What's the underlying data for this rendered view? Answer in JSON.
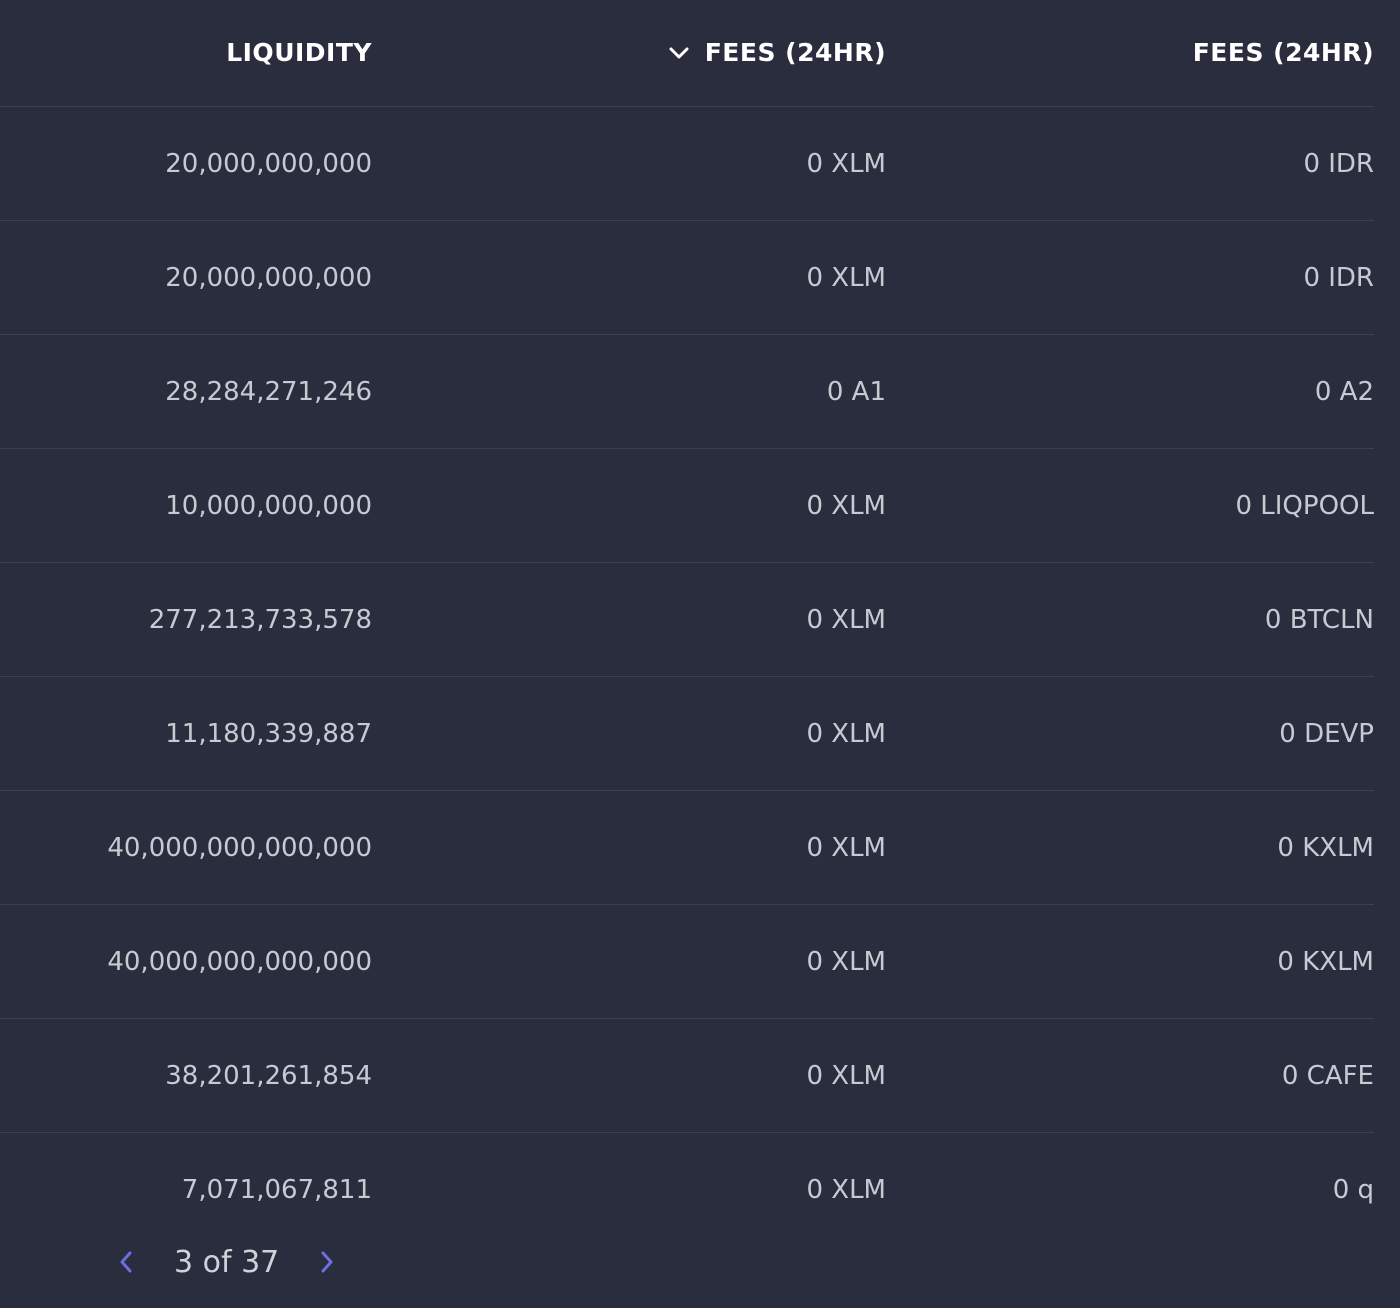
{
  "header": {
    "liquidity": "LIQUIDITY",
    "fees_a": "FEES (24HR)",
    "fees_b": "FEES (24HR)"
  },
  "rows": [
    {
      "liquidity": "20,000,000,000",
      "fee_a": "0 XLM",
      "fee_b": "0 IDR"
    },
    {
      "liquidity": "20,000,000,000",
      "fee_a": "0 XLM",
      "fee_b": "0 IDR"
    },
    {
      "liquidity": "28,284,271,246",
      "fee_a": "0 A1",
      "fee_b": "0 A2"
    },
    {
      "liquidity": "10,000,000,000",
      "fee_a": "0 XLM",
      "fee_b": "0 LIQPOOL"
    },
    {
      "liquidity": "277,213,733,578",
      "fee_a": "0 XLM",
      "fee_b": "0 BTCLN"
    },
    {
      "liquidity": "11,180,339,887",
      "fee_a": "0 XLM",
      "fee_b": "0 DEVP"
    },
    {
      "liquidity": "40,000,000,000,000",
      "fee_a": "0 XLM",
      "fee_b": "0 KXLM"
    },
    {
      "liquidity": "40,000,000,000,000",
      "fee_a": "0 XLM",
      "fee_b": "0 KXLM"
    },
    {
      "liquidity": "38,201,261,854",
      "fee_a": "0 XLM",
      "fee_b": "0 CAFE"
    },
    {
      "liquidity": "7,071,067,811",
      "fee_a": "0 XLM",
      "fee_b": "0 q"
    }
  ],
  "pagination": {
    "label": "3 of 37"
  },
  "colors": {
    "background": "#2a2d3e",
    "divider": "#3d4052",
    "accent": "#6b6fe0",
    "header_text": "#ffffff",
    "cell_text": "#c8cad2"
  },
  "icons": {
    "sort": "chevron-down-icon",
    "prev": "chevron-left-icon",
    "next": "chevron-right-icon"
  }
}
